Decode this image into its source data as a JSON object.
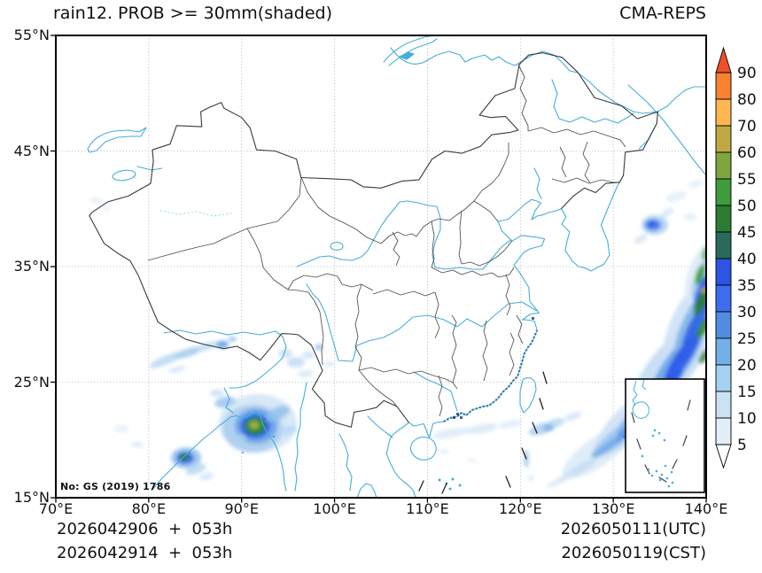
{
  "header": {
    "title": "rain12. PROB >= 30mm(shaded)",
    "model": "CMA-REPS"
  },
  "map": {
    "license": "No: GS (2019) 1786"
  },
  "axes": {
    "lat_ticks": [
      "55°N",
      "45°N",
      "35°N",
      "25°N",
      "15°N"
    ],
    "lon_ticks": [
      "70°E",
      "80°E",
      "90°E",
      "100°E",
      "110°E",
      "120°E",
      "130°E",
      "140°E"
    ]
  },
  "colorbar": {
    "tick_labels": [
      "90",
      "80",
      "70",
      "60",
      "55",
      "50",
      "45",
      "40",
      "35",
      "30",
      "25",
      "20",
      "15",
      "10",
      "5"
    ],
    "segment_colors_top_to_bottom": [
      "#f9822e",
      "#fdb751",
      "#bfa943",
      "#7ea63e",
      "#3f9b3c",
      "#2a7d33",
      "#2a6b5d",
      "#2b55e2",
      "#3e6ef0",
      "#4f8ce2",
      "#72b0ea",
      "#a5d1f0",
      "#cae2f4",
      "#e2eef8"
    ],
    "over_arrow_color": "#ee5128",
    "under_arrow_color": "#ffffff"
  },
  "footer": {
    "left_lines": [
      "2026042906  +  053h",
      "2026042914  +  053h"
    ],
    "right_lines": [
      "2026050111(UTC)",
      "2026050119(CST)"
    ]
  },
  "style_colors": {
    "coastline_river": "#45aeda",
    "land_boundary": "#3a3a3a",
    "gridline": "#9a9a9a",
    "frame": "#000000"
  },
  "chart_data": {
    "type": "heatmap",
    "title": "rain12. PROB >= 30mm(shaded)",
    "model": "CMA-REPS",
    "variable": "probability of 12h rain >= 30mm",
    "units": "%",
    "lon_range": [
      70,
      140
    ],
    "lat_range": [
      15,
      55
    ],
    "lon_ticks": [
      70,
      80,
      90,
      100,
      110,
      120,
      130,
      140
    ],
    "lat_ticks": [
      15,
      25,
      35,
      45,
      55
    ],
    "grid": "dotted 10-degree graticule",
    "legend_position": "right colorbar",
    "levels": [
      5,
      10,
      15,
      20,
      25,
      30,
      35,
      40,
      45,
      50,
      55,
      60,
      70,
      80,
      90
    ],
    "init_times": [
      "2026042906 UTC + 053h",
      "2026042914 CST + 053h"
    ],
    "valid_times": [
      "2026050111 UTC",
      "2026050119 CST"
    ],
    "features": [
      {
        "region": "SE Tibet / N Myanmar blob",
        "center_lon": 91.5,
        "center_lat": 21.2,
        "max_prob": 65
      },
      {
        "region": "Bay of Bengal coast blob",
        "center_lon": 84.0,
        "center_lat": 18.6,
        "max_prob": 50
      },
      {
        "region": "Himalaya southern slope streaks",
        "center_lon": 85.0,
        "center_lat": 27.0,
        "max_prob": 25
      },
      {
        "region": "West Yunnan speckles",
        "center_lon": 96.5,
        "center_lat": 27.0,
        "max_prob": 15
      },
      {
        "region": "NW Pacific SW-NE band at east edge",
        "center_lon": 137.0,
        "center_lat": 28.0,
        "max_prob": 60
      },
      {
        "region": "Sea of Japan small cluster",
        "center_lon": 134.0,
        "center_lat": 38.5,
        "max_prob": 35
      },
      {
        "region": "Luzon Strait streaks",
        "center_lon": 122.0,
        "center_lat": 20.5,
        "max_prob": 20
      }
    ]
  }
}
